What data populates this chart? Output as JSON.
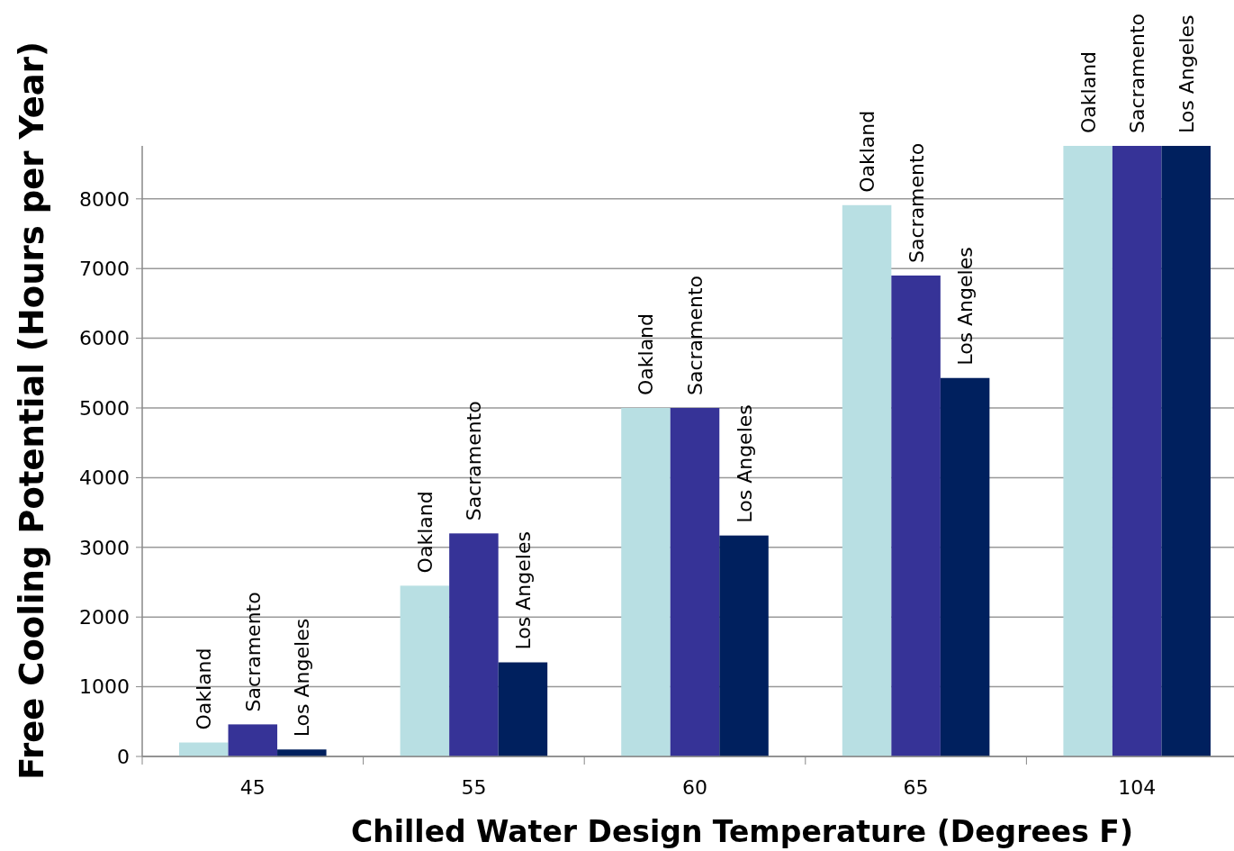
{
  "chart_data": {
    "type": "bar",
    "xlabel": "Chilled Water Design Temperature (Degrees F)",
    "ylabel": "Free Cooling Potential (Hours per Year)",
    "categories": [
      "45",
      "55",
      "60",
      "65",
      "104"
    ],
    "series": [
      {
        "name": "Oakland",
        "color": "#b8dfe3",
        "values": [
          200,
          2450,
          5000,
          7910,
          8760
        ]
      },
      {
        "name": "Sacramento",
        "color": "#363397",
        "values": [
          460,
          3200,
          5000,
          6900,
          8760
        ]
      },
      {
        "name": "Los Angeles",
        "color": "#00205e",
        "values": [
          100,
          1350,
          3170,
          5430,
          8760
        ]
      }
    ],
    "ylim": [
      0,
      8760
    ],
    "yticks": [
      0,
      1000,
      2000,
      3000,
      4000,
      5000,
      6000,
      7000,
      8000
    ],
    "grid": "y"
  }
}
